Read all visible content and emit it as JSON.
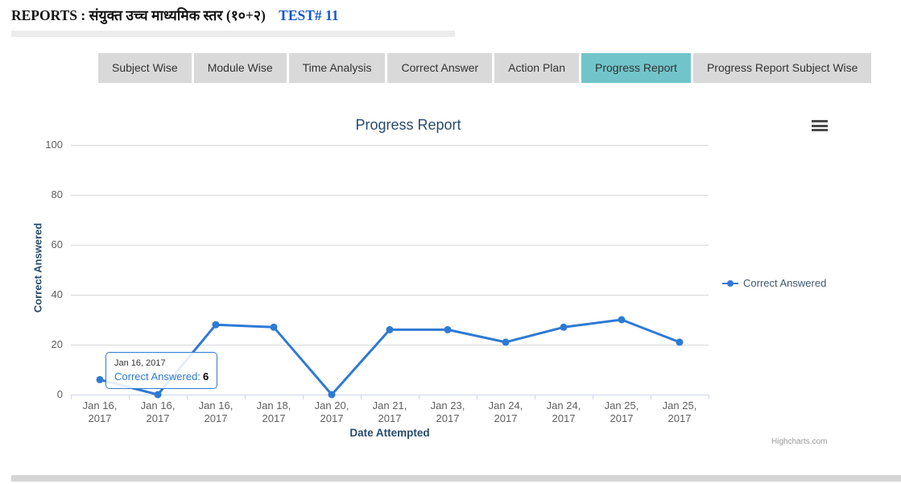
{
  "header": {
    "title_prefix": "REPORTS :",
    "title_course": "संयुक्त उच्च माध्यमिक स्तर (१०+२)",
    "test_label": "TEST# 11"
  },
  "tabs": [
    {
      "label": "Subject Wise",
      "active": false
    },
    {
      "label": "Module Wise",
      "active": false
    },
    {
      "label": "Time Analysis",
      "active": false
    },
    {
      "label": "Correct Answer",
      "active": false
    },
    {
      "label": "Action Plan",
      "active": false
    },
    {
      "label": "Progress Report",
      "active": true
    },
    {
      "label": "Progress Report Subject Wise",
      "active": false
    }
  ],
  "chart_data": {
    "type": "line",
    "title": "Progress Report",
    "xlabel": "Date Attempted",
    "ylabel": "Correct Answered",
    "categories": [
      "Jan 16, 2017",
      "Jan 16, 2017",
      "Jan 16, 2017",
      "Jan 18, 2017",
      "Jan 20, 2017",
      "Jan 21, 2017",
      "Jan 23, 2017",
      "Jan 24, 2017",
      "Jan 24, 2017",
      "Jan 25, 2017",
      "Jan 25, 2017"
    ],
    "series": [
      {
        "name": "Correct Answered",
        "values": [
          6,
          0,
          28,
          27,
          0,
          26,
          26,
          21,
          27,
          30,
          21
        ]
      }
    ],
    "ylim": [
      0,
      100
    ],
    "ytick_interval": 20,
    "yticks": [
      0,
      20,
      40,
      60,
      80,
      100
    ],
    "grid": true,
    "legend_position": "right"
  },
  "tooltip": {
    "date": "Jan 16, 2017",
    "label": "Correct Answered:",
    "value": "6"
  },
  "credits": "Highcharts.com",
  "icons": {
    "menu": "hamburger-icon"
  },
  "colors": {
    "tab_active": "#71c5ca",
    "tab_inactive": "#d9d9d9",
    "series": "#2e7ad4",
    "grid": "#d8d8d8",
    "axis": "#ccd6eb",
    "chart_title": "#274b6d",
    "axis_labels": "#606060",
    "test_link": "#1358c5"
  }
}
